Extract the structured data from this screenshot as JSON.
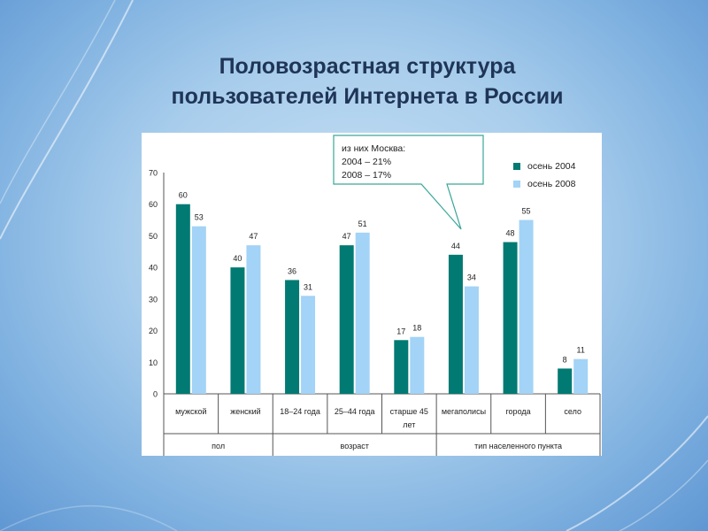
{
  "title": {
    "line1": "Половозрастная структура",
    "line2": "пользователей Интернета в России"
  },
  "callout": {
    "line1": "из них  Москва:",
    "line2": "2004 – 21%",
    "line3": "2008 – 17%"
  },
  "colors": {
    "series_2004": "#007a72",
    "series_2008": "#a3d3f6",
    "title": "#1f3557"
  },
  "chart_data": {
    "type": "bar",
    "title": "",
    "xlabel": "",
    "ylabel": "",
    "ylim": [
      0,
      70
    ],
    "yticks": [
      "0",
      "10",
      "20",
      "30",
      "40",
      "50",
      "60",
      "70"
    ],
    "grid": false,
    "legend_position": "top-right",
    "categories": [
      [
        "мужской"
      ],
      [
        "женский"
      ],
      [
        "18–24 года"
      ],
      [
        "25–44 года"
      ],
      [
        "старше 45",
        "лет"
      ],
      [
        "мегаполисы"
      ],
      [
        "города"
      ],
      [
        "село"
      ]
    ],
    "groups": [
      {
        "label": "пол",
        "span": 2
      },
      {
        "label": "возраст",
        "span": 3
      },
      {
        "label": "тип населенного пункта",
        "span": 3
      }
    ],
    "series": [
      {
        "name": "осень 2004",
        "values": [
          60,
          40,
          36,
          47,
          17,
          44,
          48,
          8
        ]
      },
      {
        "name": "осень 2008",
        "values": [
          53,
          47,
          31,
          51,
          18,
          34,
          55,
          11
        ]
      }
    ]
  }
}
